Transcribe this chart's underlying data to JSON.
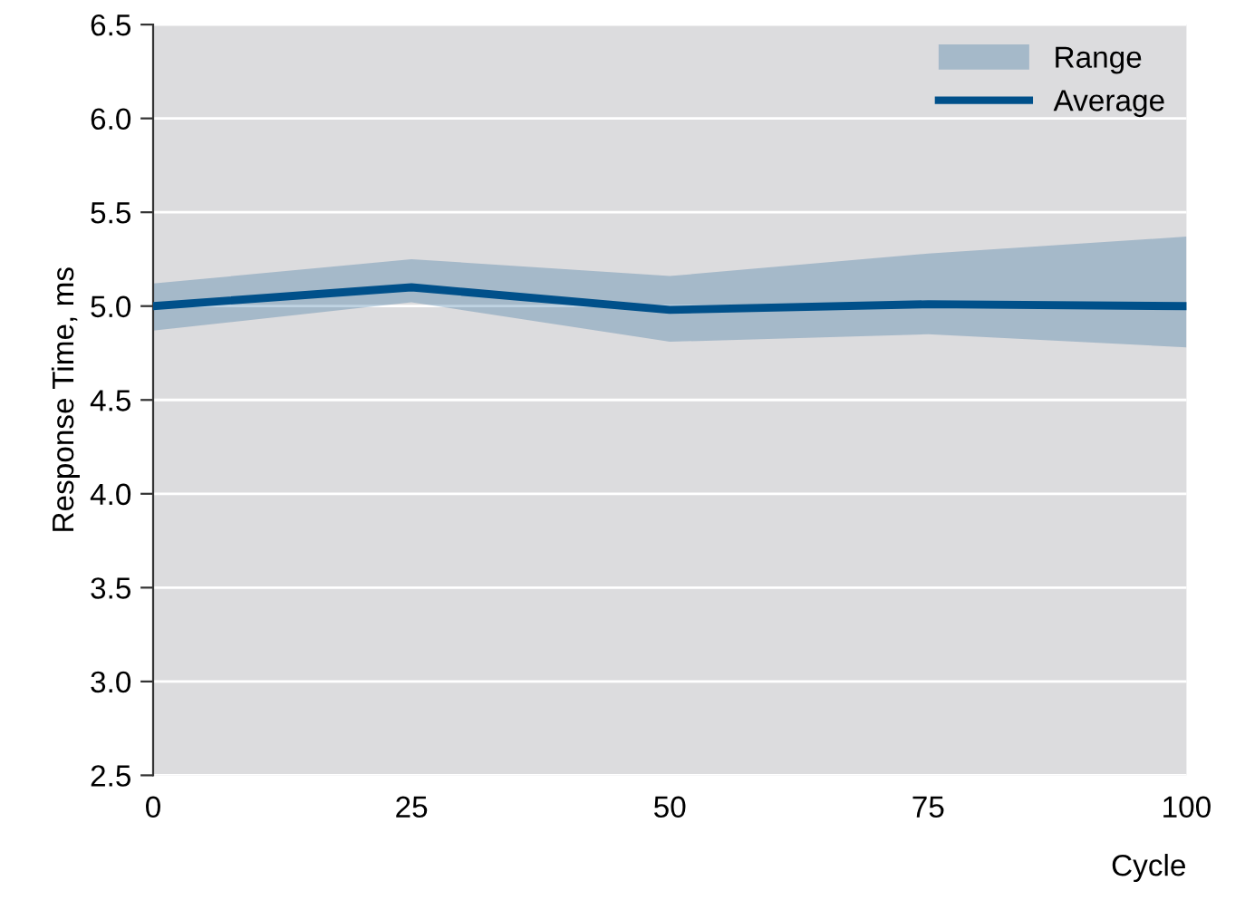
{
  "chart_data": {
    "type": "line",
    "xlabel": "Cycle",
    "ylabel": "Response Time, ms",
    "x": [
      0,
      25,
      50,
      75,
      100
    ],
    "annotations": [
      "Range"
    ],
    "series": [
      {
        "name": "Average",
        "lower": [
          4.87,
          5.02,
          4.81,
          4.85,
          4.78
        ],
        "upper": [
          5.12,
          5.25,
          5.16,
          5.28,
          5.37
        ],
        "color": "#00508a",
        "values": [
          5.0,
          5.1,
          4.98,
          5.01,
          5.0
        ]
      }
    ],
    "xlim": [
      0,
      100
    ],
    "xticks": [
      0,
      25,
      50,
      75,
      100
    ],
    "ylim": [
      2.5,
      6.5
    ],
    "yticks": [
      {
        "value": 2.5,
        "label": "2.5"
      },
      {
        "value": 3.0,
        "label": "3.0"
      },
      {
        "value": 3.5,
        "label": "3.5"
      },
      {
        "value": 4.0,
        "label": "4.0"
      },
      {
        "value": 4.5,
        "label": "4.5"
      },
      {
        "value": 5.0,
        "label": "5.0"
      },
      {
        "value": 5.5,
        "label": "5.5"
      },
      {
        "value": 6.0,
        "label": "6.0"
      },
      {
        "value": 6.5,
        "label": "6.5"
      }
    ],
    "grid": "y",
    "legend": "top right",
    "marker": "none",
    "line_style": "solid"
  }
}
